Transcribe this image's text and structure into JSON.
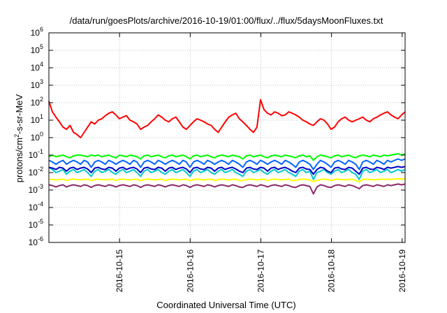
{
  "chart_data": {
    "type": "line",
    "title": "/data/run/goesPlots/archive/2016-10-19/01:00/flux/../flux/5daysMoonFluxes.txt",
    "xlabel": "Coordinated Universal Time (UTC)",
    "ylabel": {
      "prefix": "protons/cm",
      "sup": "2",
      "suffix": "-s-sr-MeV"
    },
    "y_scale": "log",
    "ylim_exponent": [
      -6,
      6
    ],
    "y_ticks": [
      {
        "base": "10",
        "exp": "-6"
      },
      {
        "base": "10",
        "exp": "-5"
      },
      {
        "base": "10",
        "exp": "-4"
      },
      {
        "base": "10",
        "exp": "-3"
      },
      {
        "base": "10",
        "exp": "-2"
      },
      {
        "base": "10",
        "exp": "-1"
      },
      {
        "base": "10",
        "exp": "0"
      },
      {
        "base": "10",
        "exp": "1"
      },
      {
        "base": "10",
        "exp": "2"
      },
      {
        "base": "10",
        "exp": "3"
      },
      {
        "base": "10",
        "exp": "4"
      },
      {
        "base": "10",
        "exp": "5"
      },
      {
        "base": "10",
        "exp": "6"
      }
    ],
    "xlim": [
      "2016-10-14 00:00",
      "2016-10-19 01:00"
    ],
    "x_ticks": [
      "2016-10-15",
      "2016-10-16",
      "2016-10-17",
      "2016-10-18",
      "2016-10-19"
    ],
    "grid": true,
    "series": [
      {
        "color": "#ff0000",
        "values": [
          120,
          30,
          15,
          8,
          4,
          3,
          5,
          2,
          1.5,
          1,
          2,
          4,
          8,
          6,
          10,
          12,
          18,
          25,
          30,
          20,
          12,
          15,
          18,
          10,
          8,
          6,
          3,
          4,
          5,
          8,
          12,
          20,
          15,
          10,
          8,
          12,
          15,
          8,
          4,
          3,
          5,
          8,
          12,
          10,
          8,
          6,
          5,
          3,
          2,
          4,
          8,
          15,
          20,
          25,
          12,
          8,
          5,
          3,
          2,
          4,
          150,
          40,
          25,
          20,
          30,
          25,
          18,
          20,
          30,
          25,
          20,
          15,
          10,
          8,
          6,
          5,
          8,
          12,
          10,
          6,
          3,
          4,
          8,
          12,
          15,
          10,
          8,
          10,
          12,
          15,
          10,
          8,
          12,
          15,
          20,
          25,
          30,
          20,
          15,
          12,
          20,
          30
        ]
      },
      {
        "color": "#00ff00",
        "values": [
          0.08,
          0.1,
          0.08,
          0.09,
          0.1,
          0.08,
          0.07,
          0.09,
          0.1,
          0.1,
          0.09,
          0.08,
          0.1,
          0.09,
          0.1,
          0.08,
          0.09,
          0.1,
          0.08,
          0.07,
          0.1,
          0.09,
          0.08,
          0.1,
          0.09,
          0.08,
          0.06,
          0.09,
          0.1,
          0.08,
          0.09,
          0.1,
          0.08,
          0.07,
          0.09,
          0.1,
          0.08,
          0.09,
          0.1,
          0.08,
          0.06,
          0.09,
          0.1,
          0.08,
          0.09,
          0.1,
          0.08,
          0.07,
          0.09,
          0.1,
          0.09,
          0.08,
          0.1,
          0.09,
          0.08,
          0.06,
          0.09,
          0.1,
          0.08,
          0.09,
          0.1,
          0.08,
          0.07,
          0.09,
          0.1,
          0.09,
          0.08,
          0.1,
          0.09,
          0.08,
          0.07,
          0.09,
          0.1,
          0.08,
          0.09,
          0.05,
          0.08,
          0.1,
          0.09,
          0.08,
          0.07,
          0.09,
          0.1,
          0.08,
          0.09,
          0.1,
          0.08,
          0.07,
          0.09,
          0.1,
          0.09,
          0.08,
          0.1,
          0.09,
          0.08,
          0.1,
          0.09,
          0.1,
          0.11,
          0.12,
          0.1,
          0.12
        ]
      },
      {
        "color": "#00c8c8",
        "values": [
          0.02,
          0.015,
          0.01,
          0.012,
          0.015,
          0.008,
          0.012,
          0.015,
          0.01,
          0.012,
          0.015,
          0.01,
          0.006,
          0.012,
          0.015,
          0.01,
          0.012,
          0.015,
          0.01,
          0.008,
          0.012,
          0.015,
          0.01,
          0.012,
          0.015,
          0.01,
          0.006,
          0.012,
          0.015,
          0.01,
          0.012,
          0.015,
          0.01,
          0.008,
          0.012,
          0.015,
          0.01,
          0.012,
          0.015,
          0.01,
          0.006,
          0.012,
          0.015,
          0.01,
          0.012,
          0.015,
          0.01,
          0.008,
          0.012,
          0.015,
          0.01,
          0.012,
          0.015,
          0.01,
          0.008,
          0.006,
          0.012,
          0.015,
          0.01,
          0.012,
          0.015,
          0.01,
          0.008,
          0.012,
          0.015,
          0.01,
          0.012,
          0.015,
          0.01,
          0.008,
          0.006,
          0.012,
          0.015,
          0.01,
          0.012,
          0.004,
          0.01,
          0.012,
          0.015,
          0.01,
          0.008,
          0.012,
          0.015,
          0.01,
          0.012,
          0.015,
          0.01,
          0.008,
          0.004,
          0.012,
          0.015,
          0.01,
          0.012,
          0.015,
          0.01,
          0.012,
          0.015,
          0.01,
          0.012,
          0.015,
          0.012,
          0.015
        ]
      },
      {
        "color": "#0064ff",
        "values": [
          0.05,
          0.04,
          0.03,
          0.04,
          0.05,
          0.03,
          0.04,
          0.05,
          0.04,
          0.03,
          0.05,
          0.04,
          0.02,
          0.04,
          0.05,
          0.04,
          0.03,
          0.05,
          0.04,
          0.03,
          0.04,
          0.05,
          0.04,
          0.03,
          0.05,
          0.04,
          0.02,
          0.04,
          0.05,
          0.04,
          0.03,
          0.05,
          0.04,
          0.03,
          0.04,
          0.05,
          0.04,
          0.03,
          0.05,
          0.04,
          0.02,
          0.04,
          0.05,
          0.04,
          0.03,
          0.05,
          0.04,
          0.03,
          0.04,
          0.05,
          0.04,
          0.03,
          0.05,
          0.04,
          0.03,
          0.02,
          0.04,
          0.05,
          0.04,
          0.03,
          0.05,
          0.04,
          0.03,
          0.04,
          0.05,
          0.04,
          0.03,
          0.05,
          0.04,
          0.03,
          0.02,
          0.04,
          0.05,
          0.04,
          0.03,
          0.015,
          0.03,
          0.05,
          0.04,
          0.03,
          0.02,
          0.04,
          0.05,
          0.04,
          0.03,
          0.05,
          0.04,
          0.03,
          0.015,
          0.04,
          0.05,
          0.04,
          0.03,
          0.05,
          0.04,
          0.03,
          0.05,
          0.04,
          0.05,
          0.06,
          0.05,
          0.06
        ]
      },
      {
        "color": "#0000c8",
        "values": [
          0.02,
          0.018,
          0.015,
          0.02,
          0.018,
          0.012,
          0.018,
          0.02,
          0.015,
          0.018,
          0.02,
          0.016,
          0.01,
          0.018,
          0.02,
          0.016,
          0.015,
          0.02,
          0.018,
          0.012,
          0.018,
          0.02,
          0.015,
          0.018,
          0.02,
          0.016,
          0.01,
          0.018,
          0.02,
          0.016,
          0.015,
          0.02,
          0.018,
          0.012,
          0.018,
          0.02,
          0.015,
          0.018,
          0.02,
          0.016,
          0.01,
          0.018,
          0.02,
          0.016,
          0.015,
          0.02,
          0.018,
          0.012,
          0.018,
          0.02,
          0.015,
          0.018,
          0.02,
          0.016,
          0.012,
          0.01,
          0.018,
          0.02,
          0.016,
          0.015,
          0.02,
          0.018,
          0.012,
          0.018,
          0.02,
          0.015,
          0.018,
          0.02,
          0.016,
          0.012,
          0.01,
          0.018,
          0.02,
          0.016,
          0.015,
          0.008,
          0.015,
          0.02,
          0.018,
          0.012,
          0.01,
          0.018,
          0.02,
          0.016,
          0.015,
          0.02,
          0.018,
          0.012,
          0.008,
          0.018,
          0.02,
          0.016,
          0.015,
          0.02,
          0.018,
          0.015,
          0.02,
          0.018,
          0.02,
          0.022,
          0.02,
          0.022
        ]
      },
      {
        "color": "#ffff00",
        "values": [
          0.004,
          0.004,
          0.0038,
          0.004,
          0.0042,
          0.0035,
          0.004,
          0.0042,
          0.004,
          0.0038,
          0.004,
          0.0042,
          0.0035,
          0.004,
          0.0042,
          0.004,
          0.0038,
          0.004,
          0.0042,
          0.0035,
          0.004,
          0.0042,
          0.004,
          0.0038,
          0.004,
          0.0042,
          0.0035,
          0.004,
          0.0042,
          0.004,
          0.0038,
          0.004,
          0.0042,
          0.0035,
          0.004,
          0.0042,
          0.004,
          0.0038,
          0.004,
          0.0042,
          0.0035,
          0.004,
          0.0042,
          0.004,
          0.0038,
          0.004,
          0.0042,
          0.0035,
          0.004,
          0.0042,
          0.004,
          0.0038,
          0.004,
          0.0042,
          0.0035,
          0.0035,
          0.004,
          0.0042,
          0.004,
          0.0038,
          0.004,
          0.0042,
          0.0035,
          0.004,
          0.0042,
          0.004,
          0.0038,
          0.004,
          0.0042,
          0.0035,
          0.0035,
          0.004,
          0.0042,
          0.004,
          0.0038,
          0.003,
          0.0035,
          0.004,
          0.0042,
          0.004,
          0.0035,
          0.004,
          0.0042,
          0.004,
          0.0038,
          0.004,
          0.0042,
          0.0035,
          0.003,
          0.004,
          0.0042,
          0.004,
          0.0038,
          0.004,
          0.0042,
          0.004,
          0.0042,
          0.004,
          0.0042,
          0.0045,
          0.0042,
          0.0045
        ]
      },
      {
        "color": "#8b2a6e",
        "values": [
          0.002,
          0.0018,
          0.0015,
          0.0018,
          0.002,
          0.0015,
          0.0018,
          0.002,
          0.0018,
          0.0016,
          0.002,
          0.0018,
          0.0014,
          0.0018,
          0.002,
          0.0018,
          0.0016,
          0.002,
          0.0018,
          0.0015,
          0.0018,
          0.002,
          0.0018,
          0.0016,
          0.002,
          0.0018,
          0.0014,
          0.0018,
          0.002,
          0.0018,
          0.0016,
          0.002,
          0.0018,
          0.0015,
          0.0018,
          0.002,
          0.0018,
          0.0016,
          0.002,
          0.0018,
          0.0014,
          0.0018,
          0.002,
          0.0018,
          0.0016,
          0.002,
          0.0018,
          0.0015,
          0.0018,
          0.002,
          0.0018,
          0.0016,
          0.002,
          0.0018,
          0.0015,
          0.0014,
          0.0018,
          0.002,
          0.0018,
          0.0016,
          0.002,
          0.0018,
          0.0015,
          0.0018,
          0.002,
          0.0018,
          0.0016,
          0.002,
          0.0018,
          0.0015,
          0.0014,
          0.0018,
          0.002,
          0.0018,
          0.0016,
          0.0006,
          0.0015,
          0.002,
          0.0018,
          0.0015,
          0.0014,
          0.0018,
          0.002,
          0.0018,
          0.0016,
          0.002,
          0.0018,
          0.0015,
          0.0012,
          0.0018,
          0.002,
          0.0018,
          0.0016,
          0.002,
          0.0018,
          0.0016,
          0.002,
          0.0018,
          0.002,
          0.0022,
          0.002,
          0.0022
        ]
      }
    ]
  }
}
